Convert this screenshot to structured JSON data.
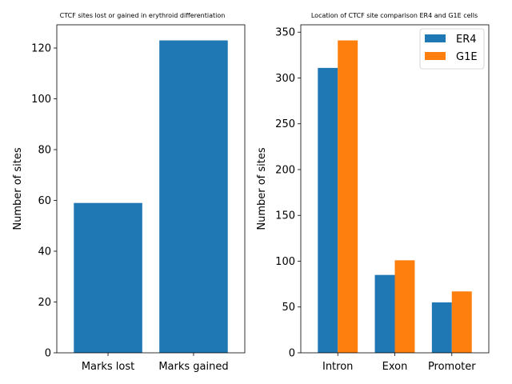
{
  "chart_data": [
    {
      "type": "bar",
      "title": "CTCF sites lost or gained in erythroid differentiation",
      "xlabel": "",
      "ylabel": "Number of sites",
      "categories": [
        "Marks lost",
        "Marks gained"
      ],
      "series": [
        {
          "values": [
            59,
            123
          ],
          "color": "#1f77b4"
        }
      ],
      "ylim": [
        0,
        129.15
      ],
      "yticks": [
        0,
        20,
        40,
        60,
        80,
        100,
        120
      ],
      "grid": false,
      "legend": "none"
    },
    {
      "type": "bar",
      "title": "Location of CTCF site comparison ER4 and G1E cells",
      "xlabel": "",
      "ylabel": "Number of sites",
      "categories": [
        "Intron",
        "Exon",
        "Promoter"
      ],
      "series": [
        {
          "name": "ER4",
          "values": [
            311,
            85,
            55
          ],
          "color": "#1f77b4"
        },
        {
          "name": "G1E",
          "values": [
            341,
            101,
            67
          ],
          "color": "#ff7f0e"
        }
      ],
      "ylim": [
        0,
        358.05
      ],
      "yticks": [
        0,
        50,
        100,
        150,
        200,
        250,
        300,
        350
      ],
      "grid": false,
      "legend": "top-right"
    }
  ]
}
